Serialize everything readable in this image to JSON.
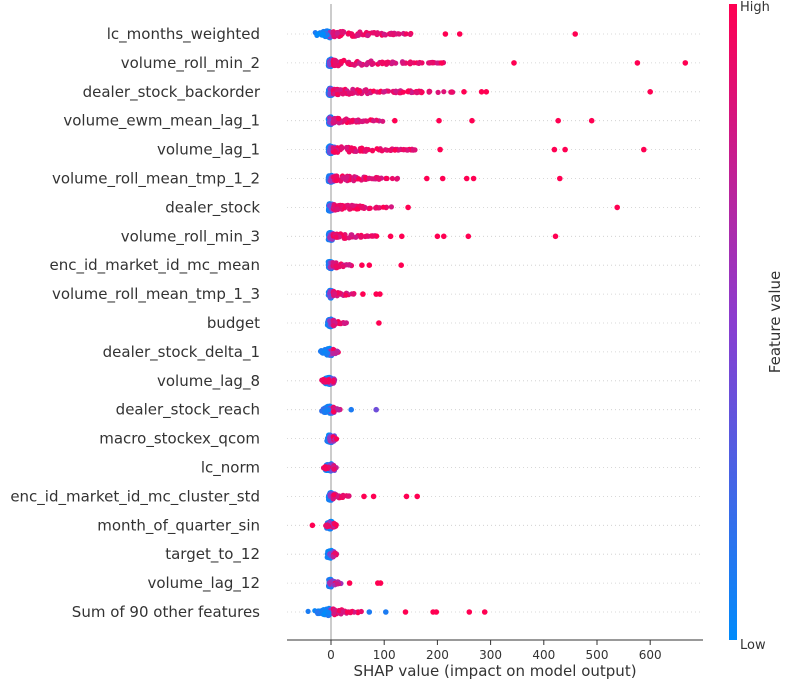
{
  "chart_data": {
    "type": "scatter",
    "subtype": "shap_beeswarm",
    "xlabel": "SHAP value (impact on model output)",
    "xlim": [
      -80,
      700
    ],
    "xticks": [
      0,
      100,
      200,
      300,
      400,
      500,
      600
    ],
    "colorbar": {
      "title": "Feature value",
      "high_label": "High",
      "low_label": "Low",
      "high_color": "#ff0052",
      "low_color": "#008bfb"
    },
    "features": [
      {
        "name": "lc_months_weighted",
        "range": [
          -30,
          160
        ],
        "outliers": [
          [
            215,
            1
          ],
          [
            242,
            1
          ],
          [
            459,
            1
          ],
          [
            -25,
            0
          ],
          [
            -15,
            0
          ]
        ]
      },
      {
        "name": "volume_roll_min_2",
        "range": [
          -5,
          220
        ],
        "outliers": [
          [
            344,
            1
          ],
          [
            576,
            1
          ],
          [
            666,
            1
          ]
        ]
      },
      {
        "name": "dealer_stock_backorder",
        "range": [
          -5,
          230
        ],
        "outliers": [
          [
            250,
            1
          ],
          [
            283,
            1
          ],
          [
            292,
            1
          ],
          [
            600,
            1
          ]
        ]
      },
      {
        "name": "volume_ewm_mean_lag_1",
        "range": [
          -5,
          100
        ],
        "outliers": [
          [
            120,
            1
          ],
          [
            203,
            1
          ],
          [
            265,
            1
          ],
          [
            427,
            1
          ],
          [
            490,
            1
          ]
        ]
      },
      {
        "name": "volume_lag_1",
        "range": [
          -5,
          160
        ],
        "outliers": [
          [
            205,
            1
          ],
          [
            420,
            1
          ],
          [
            440,
            1
          ],
          [
            588,
            1
          ]
        ]
      },
      {
        "name": "volume_roll_mean_tmp_1_2",
        "range": [
          -5,
          130
        ],
        "outliers": [
          [
            180,
            1
          ],
          [
            210,
            1
          ],
          [
            255,
            1
          ],
          [
            268,
            1
          ],
          [
            430,
            1
          ]
        ]
      },
      {
        "name": "dealer_stock",
        "range": [
          -5,
          115
        ],
        "outliers": [
          [
            145,
            1
          ],
          [
            538,
            1
          ]
        ]
      },
      {
        "name": "volume_roll_min_3",
        "range": [
          -5,
          90
        ],
        "outliers": [
          [
            112,
            1
          ],
          [
            133,
            1
          ],
          [
            200,
            1
          ],
          [
            212,
            1
          ],
          [
            258,
            1
          ],
          [
            422,
            1
          ]
        ]
      },
      {
        "name": "enc_id_market_id_mc_mean",
        "range": [
          -5,
          40
        ],
        "outliers": [
          [
            58,
            1
          ],
          [
            72,
            1
          ],
          [
            132,
            1
          ]
        ]
      },
      {
        "name": "volume_roll_mean_tmp_1_3",
        "range": [
          -5,
          45
        ],
        "outliers": [
          [
            60,
            1
          ],
          [
            85,
            1
          ],
          [
            92,
            1
          ]
        ]
      },
      {
        "name": "budget",
        "range": [
          -8,
          30
        ],
        "outliers": [
          [
            90,
            1
          ]
        ]
      },
      {
        "name": "dealer_stock_delta_1",
        "range": [
          -20,
          15
        ],
        "outliers": []
      },
      {
        "name": "volume_lag_8",
        "range": [
          -18,
          8
        ],
        "outliers": []
      },
      {
        "name": "dealer_stock_reach",
        "range": [
          -20,
          20
        ],
        "outliers": [
          [
            38,
            0.1
          ],
          [
            85,
            0.4
          ]
        ]
      },
      {
        "name": "macro_stockex_qcom",
        "range": [
          -10,
          12
        ],
        "outliers": []
      },
      {
        "name": "lc_norm",
        "range": [
          -15,
          12
        ],
        "outliers": []
      },
      {
        "name": "enc_id_market_id_mc_cluster_std",
        "range": [
          -5,
          40
        ],
        "outliers": [
          [
            62,
            1
          ],
          [
            80,
            1
          ],
          [
            142,
            1
          ],
          [
            162,
            1
          ]
        ]
      },
      {
        "name": "month_of_quarter_sin",
        "range": [
          -12,
          12
        ],
        "outliers": [
          [
            -35,
            1
          ]
        ]
      },
      {
        "name": "target_to_12",
        "range": [
          -8,
          12
        ],
        "outliers": []
      },
      {
        "name": "volume_lag_12",
        "range": [
          -5,
          20
        ],
        "outliers": [
          [
            35,
            1
          ],
          [
            88,
            1
          ],
          [
            93,
            1
          ]
        ]
      },
      {
        "name": "Sum of 90 other features",
        "range": [
          -45,
          60
        ],
        "outliers": [
          [
            72,
            0.1
          ],
          [
            103,
            0.1
          ],
          [
            140,
            1
          ],
          [
            192,
            1
          ],
          [
            198,
            1
          ],
          [
            260,
            1
          ],
          [
            289,
            1
          ]
        ]
      }
    ]
  }
}
